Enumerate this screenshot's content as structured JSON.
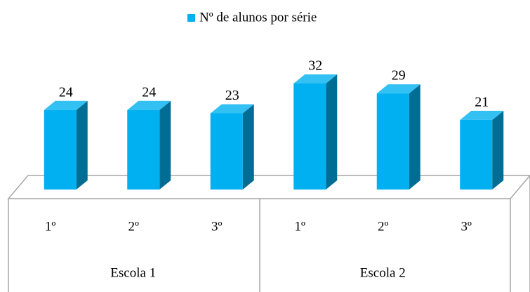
{
  "chart_data": {
    "type": "bar3d",
    "categories": [
      "1º",
      "2º",
      "3º",
      "1º",
      "2º",
      "3º"
    ],
    "groups": [
      "Escola 1",
      "Escola 2"
    ],
    "series": [
      {
        "name": "Nº de alunos por série",
        "color": "#00b0f0",
        "values": [
          24,
          24,
          23,
          32,
          29,
          21
        ]
      }
    ],
    "legend": "top"
  }
}
